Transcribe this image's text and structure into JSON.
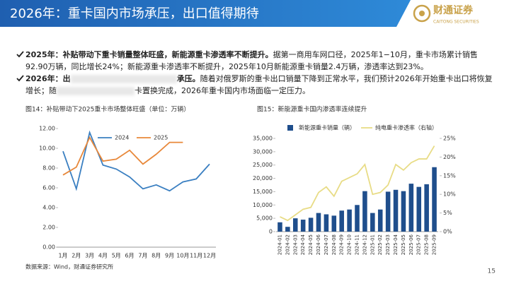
{
  "header": {
    "title": "2026年：重卡国内市场承压，出口值得期待",
    "logo_name": "财通证券",
    "logo_sub": "CAITONG SECURITIES"
  },
  "bullets": [
    {
      "bold": "2025年：补贴带动下重卡销量整体旺盛，新能源重卡渗透率不断提升。",
      "text": "据第一商用车网口径，2025年1−10月，重卡市场累计销售92.90万辆，同比增长24%；新能源重卡渗透率不断提升，2025年10月新能源重卡销量2.4万辆，渗透率达到23%。"
    },
    {
      "bold": "2026年：出",
      "bold_2": "承压。",
      "text": "随着对俄罗斯的重卡出口销量下降到正常水平，我们预计2026年开始重卡出口将恢复增长；随",
      "text_2": "卡置换完成，2026年重卡国内市场面临一定压力。"
    }
  ],
  "chart_data": [
    {
      "type": "line",
      "title": "图14：补贴带动下2025重卡市场整体旺盛（单位：万辆）",
      "categories": [
        "1月",
        "2月",
        "3月",
        "4月",
        "5月",
        "6月",
        "7月",
        "8月",
        "9月",
        "10月",
        "11月",
        "12月"
      ],
      "series": [
        {
          "name": "2024",
          "color": "#3a7fc1",
          "values": [
            9.7,
            5.9,
            11.6,
            8.3,
            7.9,
            7.1,
            5.9,
            6.3,
            5.7,
            6.6,
            6.9,
            8.4
          ]
        },
        {
          "name": "2025",
          "color": "#e8883a",
          "values": [
            7.3,
            8.1,
            11.1,
            8.7,
            8.9,
            9.8,
            8.4,
            9.4,
            10.6,
            10.6,
            null,
            null
          ]
        }
      ],
      "ylim": [
        0,
        12
      ],
      "yticks": [
        {
          "value": 0,
          "label": "0.00"
        },
        {
          "value": 2,
          "label": "2.00"
        },
        {
          "value": 4,
          "label": "4.00"
        },
        {
          "value": 6,
          "label": "6.00"
        },
        {
          "value": 8,
          "label": "8.00"
        },
        {
          "value": 10,
          "label": "10.00"
        },
        {
          "value": 12,
          "label": "12.00"
        }
      ]
    },
    {
      "type": "bar",
      "title": "图15：新能源重卡国内渗透率连续提升",
      "categories": [
        "2024-01",
        "2024-02",
        "2024-03",
        "2024-04",
        "2024-05",
        "2024-06",
        "2024-07",
        "2024-08",
        "2024-09",
        "2024-10",
        "2024-11",
        "2024-12",
        "2025-01",
        "2025-02",
        "2025-03",
        "2025-04",
        "2025-05",
        "2025-06",
        "2025-07",
        "2025-08",
        "2025-09"
      ],
      "series": [
        {
          "name": "新能源重卡销量（辆）",
          "color": "#1f4e8c",
          "values": [
            3500,
            1800,
            5000,
            4500,
            5200,
            7000,
            6500,
            6000,
            7900,
            8300,
            10000,
            15200,
            7000,
            8300,
            15000,
            15700,
            15200,
            18000,
            16800,
            17800,
            24200
          ]
        },
        {
          "name": "纯电重卡渗透率（右轴）",
          "color": "#e8dc86",
          "axis": "y2",
          "values": [
            4.0,
            3.0,
            4.5,
            6.0,
            6.5,
            10.5,
            12,
            9.5,
            13.5,
            14.5,
            15.5,
            18,
            10,
            10.5,
            12.5,
            18,
            16.5,
            18.5,
            19.5,
            19.5,
            23.0
          ]
        }
      ],
      "ylim": [
        0,
        35000
      ],
      "yticks": [
        0,
        {
          "value": 5000,
          "label": "5,000"
        },
        {
          "value": 10000,
          "label": "10,000"
        },
        {
          "value": 15000,
          "label": "15,000"
        },
        {
          "value": 20000,
          "label": "20,000"
        },
        {
          "value": 25000,
          "label": "25,000"
        },
        {
          "value": 30000,
          "label": "30,000"
        },
        {
          "value": 35000,
          "label": "35,000"
        }
      ],
      "y2lim": [
        0,
        25
      ],
      "y2ticks": [
        {
          "value": 0,
          "label": "0%"
        },
        {
          "value": 5,
          "label": "5%"
        },
        {
          "value": 10,
          "label": "10%"
        },
        {
          "value": 15,
          "label": "15%"
        },
        {
          "value": 20,
          "label": "20%"
        },
        {
          "value": 25,
          "label": "25%"
        }
      ]
    }
  ],
  "source": "数据来源：Wind，财通证券研究所",
  "page": "15"
}
